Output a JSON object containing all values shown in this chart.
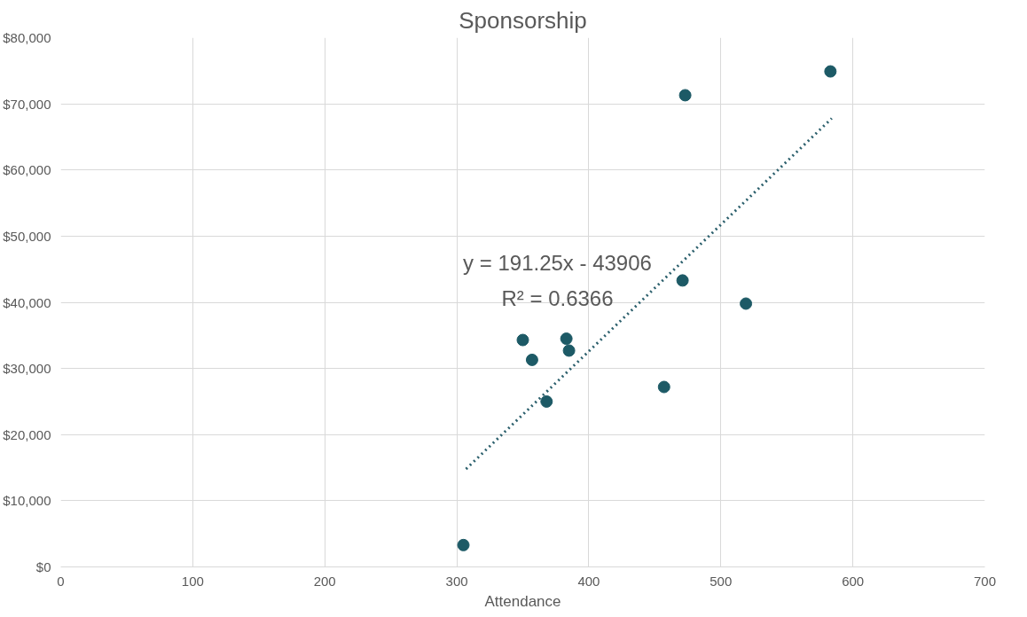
{
  "chart_data": {
    "type": "scatter",
    "title": "Sponsorship",
    "xlabel": "Attendance",
    "xlim": [
      0,
      700
    ],
    "xticks": [
      0,
      100,
      200,
      300,
      400,
      500,
      600,
      700
    ],
    "ylim": [
      0,
      80000
    ],
    "yticks": [
      {
        "value": 0,
        "label": "$0"
      },
      {
        "value": 10000,
        "label": "$10,000"
      },
      {
        "value": 20000,
        "label": "$20,000"
      },
      {
        "value": 30000,
        "label": "$30,000"
      },
      {
        "value": 40000,
        "label": "$40,000"
      },
      {
        "value": 50000,
        "label": "$50,000"
      },
      {
        "value": 60000,
        "label": "$60,000"
      },
      {
        "value": 70000,
        "label": "$70,000"
      },
      {
        "value": 80000,
        "label": "$80,000"
      }
    ],
    "grid": true,
    "marker": "circle",
    "series": [
      {
        "color": "#1d5a66",
        "x": [
          305,
          350,
          357,
          368,
          383,
          385,
          457,
          471,
          473,
          519,
          583
        ],
        "values": [
          3300,
          34300,
          31300,
          25000,
          34500,
          32700,
          27200,
          43300,
          71300,
          39800,
          74900
        ]
      },
      {
        "type": "line",
        "color": "#2b5f6c",
        "line_style": "dotted",
        "marker": "none",
        "x": [
          307,
          584
        ],
        "values": [
          14800,
          67800
        ]
      }
    ],
    "annotations": [
      "y = 191.25x - 43906",
      "R² = 0.6366"
    ]
  }
}
